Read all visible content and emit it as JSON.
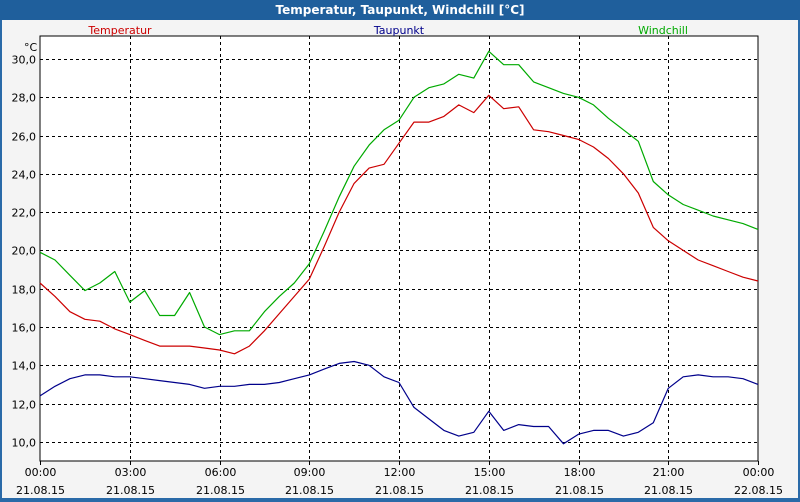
{
  "window": {
    "title": "Temperatur, Taupunkt, Windchill [°C]"
  },
  "chart_data": {
    "type": "line",
    "title": "Temperatur, Taupunkt, Windchill [°C]",
    "ylabel": "°C",
    "ylim": [
      9,
      31.2
    ],
    "xlim": [
      0,
      24
    ],
    "grid": true,
    "legend": "top",
    "y_ticks": [
      {
        "value": 10,
        "label": "10,0"
      },
      {
        "value": 12,
        "label": "12,0"
      },
      {
        "value": 14,
        "label": "14,0"
      },
      {
        "value": 16,
        "label": "16,0"
      },
      {
        "value": 18,
        "label": "18,0"
      },
      {
        "value": 20,
        "label": "20,0"
      },
      {
        "value": 22,
        "label": "22,0"
      },
      {
        "value": 24,
        "label": "24,0"
      },
      {
        "value": 26,
        "label": "26,0"
      },
      {
        "value": 28,
        "label": "28,0"
      },
      {
        "value": 30,
        "label": "30,0"
      }
    ],
    "x_ticks": [
      {
        "value": 0,
        "time": "00:00",
        "date": "21.08.15"
      },
      {
        "value": 3,
        "time": "03:00",
        "date": "21.08.15"
      },
      {
        "value": 6,
        "time": "06:00",
        "date": "21.08.15"
      },
      {
        "value": 9,
        "time": "09:00",
        "date": "21.08.15"
      },
      {
        "value": 12,
        "time": "12:00",
        "date": "21.08.15"
      },
      {
        "value": 15,
        "time": "15:00",
        "date": "21.08.15"
      },
      {
        "value": 18,
        "time": "18:00",
        "date": "21.08.15"
      },
      {
        "value": 21,
        "time": "21:00",
        "date": "21.08.15"
      },
      {
        "value": 24,
        "time": "00:00",
        "date": "22.08.15"
      }
    ],
    "series": [
      {
        "name": "Temperatur",
        "color": "#cc0000",
        "x": [
          0,
          0.5,
          1,
          1.5,
          2,
          2.5,
          3,
          3.5,
          4,
          4.5,
          5,
          5.5,
          6,
          6.5,
          7,
          7.5,
          8,
          8.5,
          9,
          9.5,
          10,
          10.5,
          11,
          11.5,
          12,
          12.5,
          13,
          13.5,
          14,
          14.5,
          15,
          15.5,
          16,
          16.5,
          17,
          17.5,
          18,
          18.5,
          19,
          19.5,
          20,
          20.5,
          21,
          21.5,
          22,
          22.5,
          23,
          23.5,
          24
        ],
        "y": [
          18.3,
          17.6,
          16.8,
          16.4,
          16.3,
          15.9,
          15.6,
          15.3,
          15.0,
          15.0,
          15.0,
          14.9,
          14.8,
          14.6,
          15.0,
          15.8,
          16.7,
          17.6,
          18.5,
          20.2,
          22.0,
          23.5,
          24.3,
          24.5,
          25.6,
          26.7,
          26.7,
          27.0,
          27.6,
          27.2,
          28.1,
          27.4,
          27.5,
          26.3,
          26.2,
          26.0,
          25.8,
          25.4,
          24.8,
          24.0,
          23.0,
          21.2,
          20.5,
          20.0,
          19.5,
          19.2,
          18.9,
          18.6,
          18.4
        ]
      },
      {
        "name": "Taupunkt",
        "color": "#00008b",
        "x": [
          0,
          0.5,
          1,
          1.5,
          2,
          2.5,
          3,
          3.5,
          4,
          4.5,
          5,
          5.5,
          6,
          6.5,
          7,
          7.5,
          8,
          8.5,
          9,
          9.5,
          10,
          10.5,
          11,
          11.5,
          12,
          12.5,
          13,
          13.5,
          14,
          14.5,
          15,
          15.5,
          16,
          16.5,
          17,
          17.5,
          18,
          18.5,
          19,
          19.5,
          20,
          20.5,
          21,
          21.5,
          22,
          22.5,
          23,
          23.5,
          24
        ],
        "y": [
          12.4,
          12.9,
          13.3,
          13.5,
          13.5,
          13.4,
          13.4,
          13.3,
          13.2,
          13.1,
          13.0,
          12.8,
          12.9,
          12.9,
          13.0,
          13.0,
          13.1,
          13.3,
          13.5,
          13.8,
          14.1,
          14.2,
          14.0,
          13.4,
          13.1,
          11.8,
          11.2,
          10.6,
          10.3,
          10.5,
          11.6,
          10.6,
          10.9,
          10.8,
          10.8,
          9.9,
          10.4,
          10.6,
          10.6,
          10.3,
          10.5,
          11.0,
          12.8,
          13.4,
          13.5,
          13.4,
          13.4,
          13.3,
          13.0
        ]
      },
      {
        "name": "Windchill",
        "color": "#00aa00",
        "x": [
          0,
          0.5,
          1,
          1.5,
          2,
          2.5,
          3,
          3.5,
          4,
          4.5,
          5,
          5.5,
          6,
          6.5,
          7,
          7.5,
          8,
          8.5,
          9,
          9.5,
          10,
          10.5,
          11,
          11.5,
          12,
          12.5,
          13,
          13.5,
          14,
          14.5,
          15,
          15.5,
          16,
          16.5,
          17,
          17.5,
          18,
          18.5,
          19,
          19.5,
          20,
          20.5,
          21,
          21.5,
          22,
          22.5,
          23,
          23.5,
          24
        ],
        "y": [
          19.9,
          19.5,
          18.7,
          17.9,
          18.3,
          18.9,
          17.3,
          17.9,
          16.6,
          16.6,
          17.8,
          16.0,
          15.6,
          15.8,
          15.8,
          16.8,
          17.6,
          18.3,
          19.3,
          21.0,
          22.8,
          24.4,
          25.5,
          26.3,
          26.8,
          28.0,
          28.5,
          28.7,
          29.2,
          29.0,
          30.4,
          29.7,
          29.7,
          28.8,
          28.5,
          28.2,
          28.0,
          27.6,
          26.9,
          26.3,
          25.7,
          23.6,
          22.9,
          22.4,
          22.1,
          21.8,
          21.6,
          21.4,
          21.1
        ]
      }
    ]
  }
}
